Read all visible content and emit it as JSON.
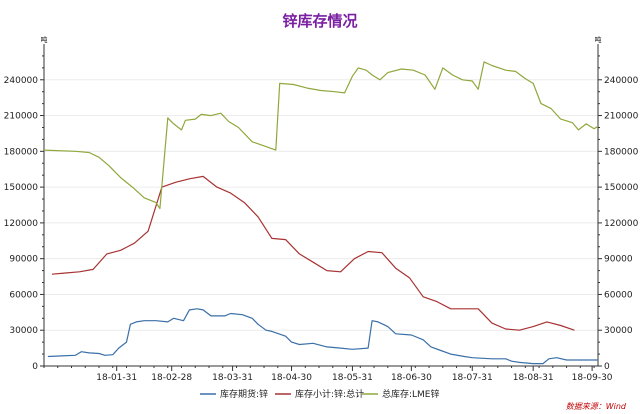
{
  "chart_data": {
    "type": "line",
    "title": "锌库存情况",
    "y_unit_left": "吨",
    "y_unit_right": "吨",
    "ylim": [
      0,
      270000
    ],
    "yticks": [
      0,
      30000,
      60000,
      90000,
      120000,
      150000,
      180000,
      210000,
      240000
    ],
    "x_range": [
      "2017-12-25",
      "2018-10-03"
    ],
    "xticks": [
      {
        "date": "2018-01-31",
        "label": "18-01-31"
      },
      {
        "date": "2018-02-28",
        "label": "18-02-28"
      },
      {
        "date": "2018-03-31",
        "label": "18-03-31"
      },
      {
        "date": "2018-04-30",
        "label": "18-04-30"
      },
      {
        "date": "2018-05-31",
        "label": "18-05-31"
      },
      {
        "date": "2018-06-30",
        "label": "18-06-30"
      },
      {
        "date": "2018-07-31",
        "label": "18-07-31"
      },
      {
        "date": "2018-08-31",
        "label": "18-08-31"
      },
      {
        "date": "2018-09-30",
        "label": "18-09-30"
      }
    ],
    "grid": true,
    "legend_position": "bottom",
    "series": [
      {
        "name": "库存期货:锌",
        "color": "#3a6fa8",
        "points": [
          [
            "2017-12-27",
            8000
          ],
          [
            "2018-01-03",
            8500
          ],
          [
            "2018-01-10",
            9000
          ],
          [
            "2018-01-13",
            12000
          ],
          [
            "2018-01-17",
            11000
          ],
          [
            "2018-01-22",
            10500
          ],
          [
            "2018-01-25",
            9000
          ],
          [
            "2018-01-29",
            9500
          ],
          [
            "2018-02-01",
            15000
          ],
          [
            "2018-02-05",
            20000
          ],
          [
            "2018-02-07",
            35000
          ],
          [
            "2018-02-10",
            37000
          ],
          [
            "2018-02-14",
            38000
          ],
          [
            "2018-02-20",
            38000
          ],
          [
            "2018-02-26",
            37000
          ],
          [
            "2018-03-01",
            40000
          ],
          [
            "2018-03-06",
            38000
          ],
          [
            "2018-03-09",
            47000
          ],
          [
            "2018-03-13",
            48000
          ],
          [
            "2018-03-16",
            47000
          ],
          [
            "2018-03-20",
            42000
          ],
          [
            "2018-03-27",
            42000
          ],
          [
            "2018-03-30",
            44000
          ],
          [
            "2018-04-05",
            43000
          ],
          [
            "2018-04-10",
            40000
          ],
          [
            "2018-04-13",
            35000
          ],
          [
            "2018-04-17",
            30000
          ],
          [
            "2018-04-20",
            29000
          ],
          [
            "2018-04-27",
            25000
          ],
          [
            "2018-04-30",
            20000
          ],
          [
            "2018-05-04",
            18000
          ],
          [
            "2018-05-11",
            19000
          ],
          [
            "2018-05-18",
            16000
          ],
          [
            "2018-05-25",
            15000
          ],
          [
            "2018-05-31",
            14000
          ],
          [
            "2018-06-08",
            15000
          ],
          [
            "2018-06-10",
            38000
          ],
          [
            "2018-06-13",
            37000
          ],
          [
            "2018-06-18",
            33000
          ],
          [
            "2018-06-22",
            27000
          ],
          [
            "2018-06-30",
            26000
          ],
          [
            "2018-07-06",
            22000
          ],
          [
            "2018-07-10",
            16000
          ],
          [
            "2018-07-15",
            13000
          ],
          [
            "2018-07-20",
            10000
          ],
          [
            "2018-07-27",
            8000
          ],
          [
            "2018-07-31",
            7000
          ],
          [
            "2018-08-10",
            6000
          ],
          [
            "2018-08-17",
            6000
          ],
          [
            "2018-08-20",
            4000
          ],
          [
            "2018-08-24",
            3000
          ],
          [
            "2018-08-31",
            2000
          ],
          [
            "2018-09-05",
            2000
          ],
          [
            "2018-09-08",
            6000
          ],
          [
            "2018-09-12",
            7000
          ],
          [
            "2018-09-17",
            5000
          ],
          [
            "2018-09-24",
            5000
          ],
          [
            "2018-10-03",
            5000
          ]
        ]
      },
      {
        "name": "库存小计:锌:总计",
        "color": "#a83232",
        "points": [
          [
            "2017-12-29",
            77000
          ],
          [
            "2018-01-05",
            78000
          ],
          [
            "2018-01-12",
            79000
          ],
          [
            "2018-01-19",
            81000
          ],
          [
            "2018-01-26",
            94000
          ],
          [
            "2018-02-02",
            97000
          ],
          [
            "2018-02-09",
            103000
          ],
          [
            "2018-02-16",
            113000
          ],
          [
            "2018-02-23",
            150000
          ],
          [
            "2018-03-02",
            154000
          ],
          [
            "2018-03-09",
            157000
          ],
          [
            "2018-03-16",
            159000
          ],
          [
            "2018-03-23",
            150000
          ],
          [
            "2018-03-30",
            145000
          ],
          [
            "2018-04-06",
            137000
          ],
          [
            "2018-04-13",
            125000
          ],
          [
            "2018-04-20",
            107000
          ],
          [
            "2018-04-27",
            106000
          ],
          [
            "2018-05-04",
            94000
          ],
          [
            "2018-05-11",
            87000
          ],
          [
            "2018-05-18",
            80000
          ],
          [
            "2018-05-25",
            79000
          ],
          [
            "2018-06-01",
            90000
          ],
          [
            "2018-06-08",
            96000
          ],
          [
            "2018-06-15",
            95000
          ],
          [
            "2018-06-22",
            82000
          ],
          [
            "2018-06-29",
            74000
          ],
          [
            "2018-07-06",
            58000
          ],
          [
            "2018-07-13",
            54000
          ],
          [
            "2018-07-20",
            48000
          ],
          [
            "2018-07-27",
            48000
          ],
          [
            "2018-08-03",
            48000
          ],
          [
            "2018-08-10",
            36000
          ],
          [
            "2018-08-17",
            31000
          ],
          [
            "2018-08-24",
            30000
          ],
          [
            "2018-08-31",
            33000
          ],
          [
            "2018-09-07",
            37000
          ],
          [
            "2018-09-14",
            34000
          ],
          [
            "2018-09-21",
            30000
          ]
        ]
      },
      {
        "name": "总库存:LME锌",
        "color": "#8fa83c",
        "points": [
          [
            "2017-12-25",
            181000
          ],
          [
            "2018-01-10",
            180000
          ],
          [
            "2018-01-17",
            179000
          ],
          [
            "2018-01-22",
            175000
          ],
          [
            "2018-01-27",
            168000
          ],
          [
            "2018-02-02",
            158000
          ],
          [
            "2018-02-08",
            150000
          ],
          [
            "2018-02-14",
            141000
          ],
          [
            "2018-02-20",
            137000
          ],
          [
            "2018-02-22",
            132000
          ],
          [
            "2018-02-26",
            208000
          ],
          [
            "2018-03-01",
            203000
          ],
          [
            "2018-03-05",
            198000
          ],
          [
            "2018-03-07",
            206000
          ],
          [
            "2018-03-12",
            207000
          ],
          [
            "2018-03-15",
            211000
          ],
          [
            "2018-03-20",
            210000
          ],
          [
            "2018-03-25",
            212000
          ],
          [
            "2018-03-29",
            205000
          ],
          [
            "2018-04-03",
            200000
          ],
          [
            "2018-04-10",
            188000
          ],
          [
            "2018-04-17",
            184000
          ],
          [
            "2018-04-22",
            181000
          ],
          [
            "2018-04-24",
            237000
          ],
          [
            "2018-05-01",
            236000
          ],
          [
            "2018-05-08",
            233000
          ],
          [
            "2018-05-15",
            231000
          ],
          [
            "2018-05-22",
            230000
          ],
          [
            "2018-05-27",
            229000
          ],
          [
            "2018-05-31",
            243000
          ],
          [
            "2018-06-03",
            250000
          ],
          [
            "2018-06-07",
            248000
          ],
          [
            "2018-06-10",
            244000
          ],
          [
            "2018-06-14",
            240000
          ],
          [
            "2018-06-18",
            246000
          ],
          [
            "2018-06-25",
            249000
          ],
          [
            "2018-07-01",
            248000
          ],
          [
            "2018-07-07",
            244000
          ],
          [
            "2018-07-12",
            232000
          ],
          [
            "2018-07-16",
            250000
          ],
          [
            "2018-07-21",
            244000
          ],
          [
            "2018-07-26",
            240000
          ],
          [
            "2018-07-31",
            239000
          ],
          [
            "2018-08-03",
            232000
          ],
          [
            "2018-08-06",
            255000
          ],
          [
            "2018-08-10",
            252000
          ],
          [
            "2018-08-17",
            248000
          ],
          [
            "2018-08-22",
            247000
          ],
          [
            "2018-08-27",
            241000
          ],
          [
            "2018-08-31",
            237000
          ],
          [
            "2018-09-04",
            220000
          ],
          [
            "2018-09-09",
            216000
          ],
          [
            "2018-09-14",
            207000
          ],
          [
            "2018-09-20",
            204000
          ],
          [
            "2018-09-23",
            198000
          ],
          [
            "2018-09-27",
            203000
          ],
          [
            "2018-10-01",
            199000
          ],
          [
            "2018-10-03",
            201000
          ]
        ]
      }
    ],
    "source": "数据来源：Wind"
  }
}
